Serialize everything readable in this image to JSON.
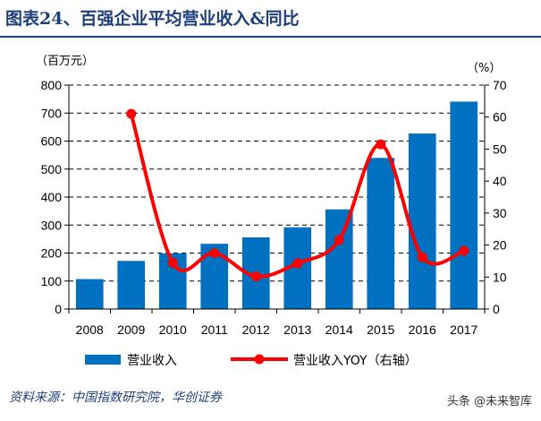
{
  "title": "图表24、百强企业平均营业收入&同比",
  "source": "资料来源：中国指数研究院，华创证券",
  "watermark": "头条 @未来智库",
  "chart_data": {
    "type": "bar+line",
    "categories": [
      "2008",
      "2009",
      "2010",
      "2011",
      "2012",
      "2013",
      "2014",
      "2015",
      "2016",
      "2017"
    ],
    "left_unit": "（百万元）",
    "right_unit": "（%）",
    "ylim_left": [
      0,
      800
    ],
    "ylim_right": [
      0,
      70
    ],
    "yticks_left": [
      "0",
      "100",
      "200",
      "300",
      "400",
      "500",
      "600",
      "700",
      "800"
    ],
    "yticks_right": [
      "0",
      "10",
      "20",
      "30",
      "40",
      "50",
      "60",
      "70"
    ],
    "grid": "dashed horizontal",
    "legend_placement": "bottom",
    "series": [
      {
        "name": "营业收入",
        "type": "bar",
        "axis": "left",
        "color": "#0070c0",
        "values": [
          107,
          172,
          199,
          233,
          256,
          292,
          356,
          540,
          627,
          741
        ]
      },
      {
        "name": "营业收入YOY（右轴）",
        "type": "line",
        "axis": "right",
        "color": "#ff0000",
        "values": [
          null,
          61,
          14.5,
          17.5,
          10.2,
          14.3,
          21.6,
          51.5,
          16.2,
          18.2
        ]
      }
    ]
  }
}
